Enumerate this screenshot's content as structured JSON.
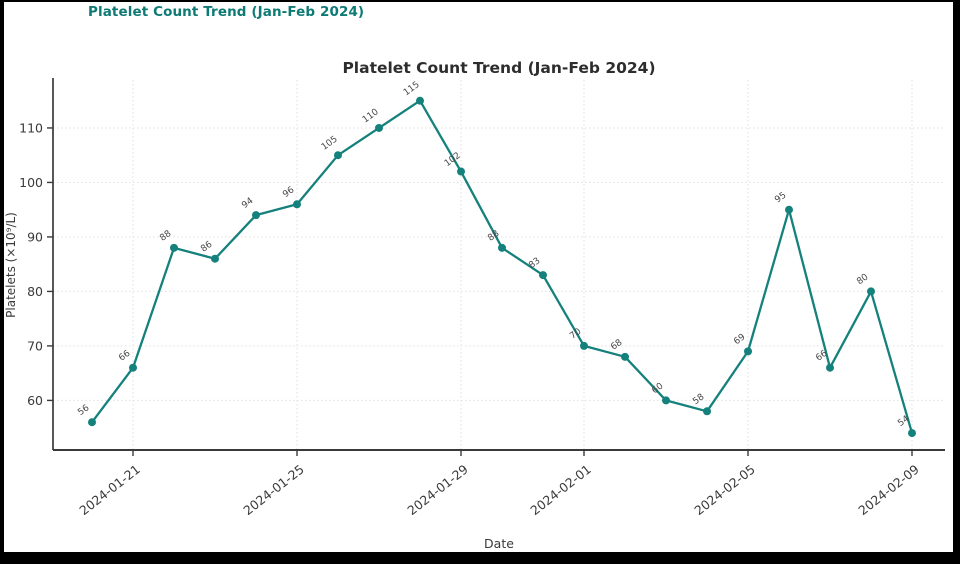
{
  "page": {
    "header_title": "Platelet Count Trend (Jan-Feb 2024)",
    "header_color": "#0d7a74",
    "background_color": "#ffffff",
    "frame_color": "#000000"
  },
  "chart_data": {
    "type": "line",
    "title": "Platelet Count Trend (Jan-Feb 2024)",
    "xlabel": "Date",
    "ylabel": "Platelets (×10⁹/L)",
    "series_name": "Platelet count",
    "x": [
      "2024-01-20",
      "2024-01-21",
      "2024-01-22",
      "2024-01-23",
      "2024-01-24",
      "2024-01-25",
      "2024-01-26",
      "2024-01-27",
      "2024-01-28",
      "2024-01-29",
      "2024-01-30",
      "2024-01-31",
      "2024-02-01",
      "2024-02-02",
      "2024-02-03",
      "2024-02-04",
      "2024-02-05",
      "2024-02-06",
      "2024-02-07",
      "2024-02-08",
      "2024-02-09"
    ],
    "values": [
      56,
      66,
      88,
      86,
      94,
      96,
      105,
      110,
      115,
      102,
      88,
      83,
      70,
      68,
      60,
      58,
      69,
      95,
      66,
      80,
      54
    ],
    "point_labels": [
      "56",
      "66",
      "88",
      "86",
      "94",
      "96",
      "105",
      "110",
      "115",
      "102",
      "88",
      "83",
      "70",
      "68",
      "60",
      "58",
      "69",
      "95",
      "66",
      "80",
      "54"
    ],
    "x_tick_indices": [
      1,
      5,
      9,
      12,
      16,
      20
    ],
    "x_tick_labels": [
      "2024-01-21",
      "2024-01-25",
      "2024-01-29",
      "2024-02-01",
      "2024-02-05",
      "2024-02-09"
    ],
    "y_ticks": [
      60,
      70,
      80,
      90,
      100,
      110
    ],
    "ylim": [
      50.9,
      118.8
    ],
    "grid": "dotted",
    "legend": "none",
    "marker": "circle",
    "colors": {
      "line": "#15817c",
      "marker": "#15817c",
      "grid": "#e0e0e0",
      "spine": "#3a3a3a",
      "title": "#2d2d2d",
      "tick_label": "#3a3a3a",
      "point_label": "#474747"
    }
  }
}
